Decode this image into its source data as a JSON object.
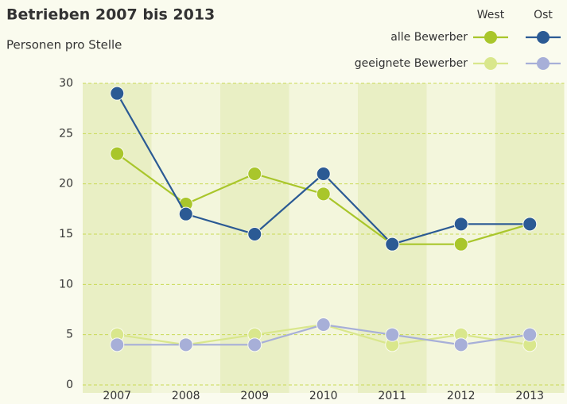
{
  "chart_data": {
    "type": "line",
    "title": "Betrieben 2007 bis 2013",
    "subtitle": "Personen pro Stelle",
    "categories": [
      "2007",
      "2008",
      "2009",
      "2010",
      "2011",
      "2012",
      "2013"
    ],
    "series": [
      {
        "name": "alle Bewerber",
        "group": "West",
        "color": "#a9c62b",
        "values": [
          23,
          18,
          21,
          19,
          14,
          14,
          16
        ]
      },
      {
        "name": "geeignete Bewerber",
        "group": "West",
        "color": "#d9e78c",
        "values": [
          5,
          4,
          5,
          6,
          4,
          5,
          4
        ]
      },
      {
        "name": "alle Bewerber",
        "group": "Ost",
        "color": "#2b5a94",
        "values": [
          29,
          17,
          15,
          21,
          14,
          16,
          16
        ]
      },
      {
        "name": "geeignete Bewerber",
        "group": "Ost",
        "color": "#a7afd8",
        "values": [
          4,
          4,
          4,
          6,
          5,
          4,
          5
        ]
      }
    ],
    "ylim": [
      0,
      30
    ],
    "yticks": [
      0,
      5,
      10,
      15,
      20,
      25,
      30
    ],
    "grid": true
  }
}
